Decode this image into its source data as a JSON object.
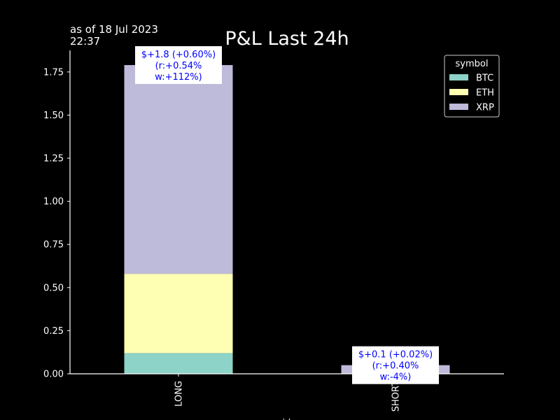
{
  "chart_data": {
    "type": "bar",
    "stacked": true,
    "title": "P&L Last 24h",
    "as_of_line1": "as of 18 Jul 2023",
    "as_of_line2": "22:37",
    "xlabel": "side",
    "ylabel": "",
    "categories": [
      "LONG",
      "SHORT"
    ],
    "series": [
      {
        "name": "BTC",
        "color": "#8dd3c7",
        "values": [
          0.12,
          0.0
        ]
      },
      {
        "name": "ETH",
        "color": "#ffffb3",
        "values": [
          0.46,
          0.0
        ]
      },
      {
        "name": "XRP",
        "color": "#bebada",
        "values": [
          1.21,
          0.05
        ]
      }
    ],
    "ylim": [
      0,
      1.875
    ],
    "yticks": [
      "0.00",
      "0.25",
      "0.50",
      "0.75",
      "1.00",
      "1.25",
      "1.50",
      "1.75"
    ],
    "legend": {
      "title": "symbol",
      "placement": "top-right"
    },
    "annotations": [
      {
        "category": "LONG",
        "lines": [
          "$+1.8 (+0.60%)",
          "(r:+0.54%",
          "w:+112%)"
        ]
      },
      {
        "category": "SHORT",
        "lines": [
          "$+0.1 (+0.02%)",
          "(r:+0.40%",
          "w:-4%)"
        ]
      }
    ],
    "grid": false
  }
}
